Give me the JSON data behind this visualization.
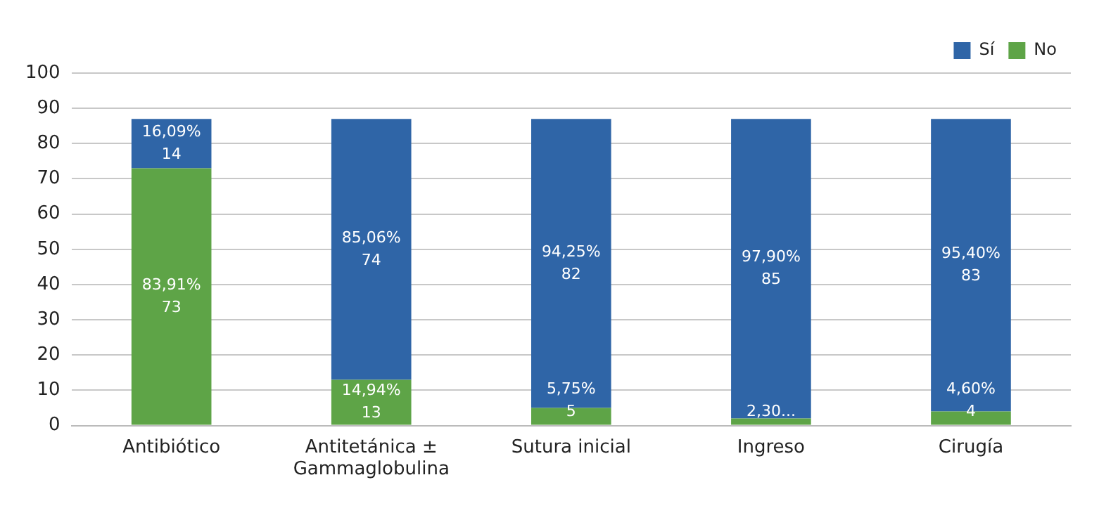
{
  "chart_data": {
    "type": "bar",
    "stacked": true,
    "categories": [
      "Antibiótico",
      "Antitetánica ± Gammaglobulina",
      "Sutura inicial",
      "Ingreso",
      "Cirugía"
    ],
    "series": [
      {
        "name": "No",
        "color": "#5ea447",
        "values": [
          73,
          13,
          5,
          2,
          4
        ],
        "value_labels": [
          "83,91%\n73",
          "14,94%\n13",
          "5,75%\n5",
          "2,30...",
          "4,60%\n4"
        ]
      },
      {
        "name": "Sí",
        "color": "#2f65a7",
        "values": [
          14,
          74,
          82,
          85,
          83
        ],
        "value_labels": [
          "16,09%\n14",
          "85,06%\n74",
          "94,25%\n82",
          "97,90%\n85",
          "95,40%\n83"
        ]
      }
    ],
    "ylim": [
      0,
      100
    ],
    "yticks": [
      0,
      10,
      20,
      30,
      40,
      50,
      60,
      70,
      80,
      90,
      100
    ],
    "grid": "y",
    "legend": "top right"
  }
}
